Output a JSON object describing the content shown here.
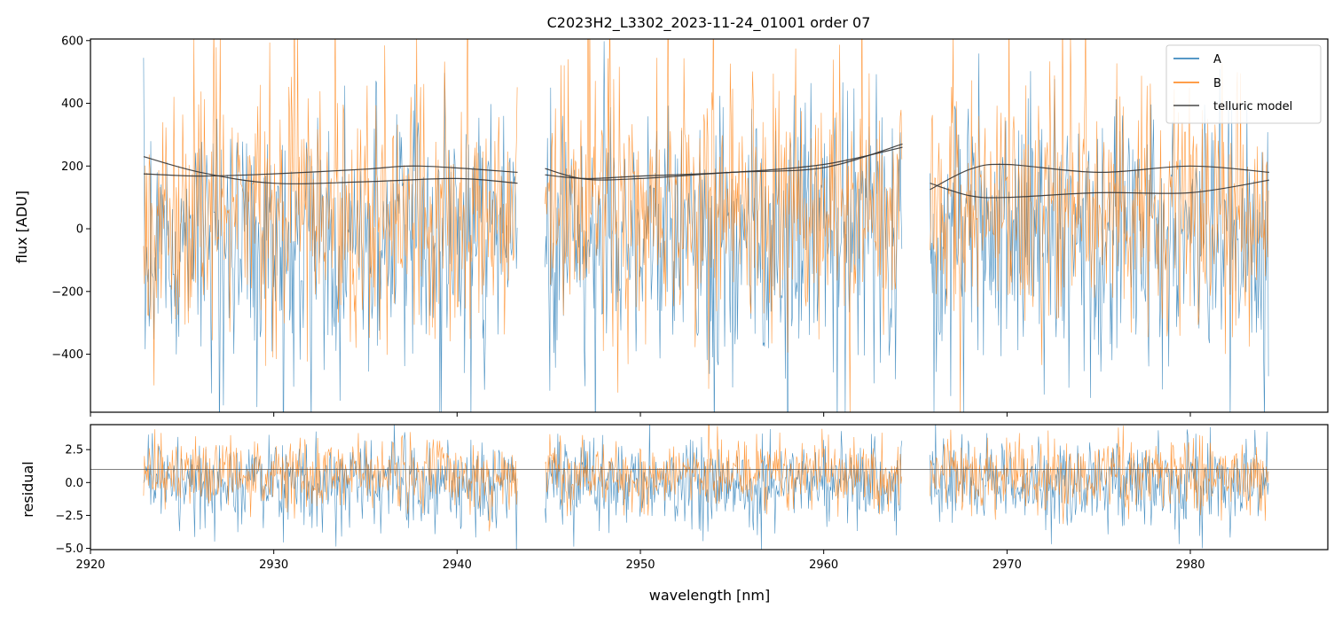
{
  "chart_data": [
    {
      "type": "line",
      "title": "C2023H2_L3302_2023-11-24_01001  order 07",
      "xlabel": "",
      "ylabel": "flux [ADU]",
      "xlim": [
        2920.0,
        2987.5
      ],
      "ylim": [
        -585,
        605
      ],
      "yticks": [
        -400,
        -200,
        0,
        200,
        400,
        600
      ],
      "ytick_labels": [
        "−400",
        "−200",
        "0",
        "200",
        "400",
        "600"
      ],
      "grid": false,
      "legend": {
        "placement": "top-right",
        "entries": [
          "A",
          "B",
          "telluric model"
        ]
      },
      "segments": [
        {
          "x_start": 2922.9,
          "x_end": 2943.3
        },
        {
          "x_start": 2944.8,
          "x_end": 2964.3
        },
        {
          "x_start": 2965.8,
          "x_end": 2984.3
        }
      ],
      "series": [
        {
          "name": "A",
          "color": "#1f77b4",
          "center": -10,
          "spread": 200,
          "low_tail": 280,
          "alpha": 0.8
        },
        {
          "name": "B",
          "color": "#ff7f0e",
          "center": 40,
          "spread": 190,
          "high_tail": 300,
          "alpha": 0.8
        },
        {
          "name": "telluric model",
          "color": "#333333",
          "curves": [
            {
              "x": [
                2922.9,
                2926,
                2930,
                2935,
                2940,
                2943.3
              ],
              "y": [
                230,
                180,
                145,
                150,
                160,
                145
              ]
            },
            {
              "x": [
                2922.9,
                2926,
                2930,
                2935,
                2938,
                2943.3
              ],
              "y": [
                175,
                168,
                175,
                190,
                200,
                180
              ]
            },
            {
              "x": [
                2944.8,
                2947,
                2950,
                2955,
                2960,
                2964.3
              ],
              "y": [
                192,
                158,
                160,
                180,
                195,
                270
              ]
            },
            {
              "x": [
                2944.8,
                2947,
                2950,
                2955,
                2960,
                2964.3
              ],
              "y": [
                172,
                160,
                168,
                180,
                205,
                260
              ]
            },
            {
              "x": [
                2965.8,
                2968,
                2970,
                2975,
                2980,
                2984.3
              ],
              "y": [
                125,
                190,
                205,
                180,
                200,
                180
              ]
            },
            {
              "x": [
                2965.8,
                2968,
                2970,
                2975,
                2980,
                2984.3
              ],
              "y": [
                145,
                105,
                100,
                115,
                115,
                155
              ]
            }
          ]
        }
      ]
    },
    {
      "type": "line",
      "title": "",
      "xlabel": "wavelength [nm]",
      "ylabel": "residual",
      "xlim": [
        2920.0,
        2987.5
      ],
      "ylim": [
        -5.1,
        4.4
      ],
      "xticks": [
        2920,
        2930,
        2940,
        2950,
        2960,
        2970,
        2980
      ],
      "xtick_labels": [
        "2920",
        "2930",
        "2940",
        "2950",
        "2960",
        "2970",
        "2980"
      ],
      "yticks": [
        -5.0,
        -2.5,
        0.0,
        2.5
      ],
      "ytick_labels": [
        "−5.0",
        "−2.5",
        "0.0",
        "2.5"
      ],
      "reference_line": 1.0,
      "grid": false,
      "segments": [
        {
          "x_start": 2922.9,
          "x_end": 2943.3
        },
        {
          "x_start": 2944.8,
          "x_end": 2964.3
        },
        {
          "x_start": 2965.8,
          "x_end": 2984.3
        }
      ],
      "series": [
        {
          "name": "A",
          "color": "#1f77b4",
          "center": 0.0,
          "spread": 1.6,
          "alpha": 0.8
        },
        {
          "name": "B",
          "color": "#ff7f0e",
          "center": 0.6,
          "spread": 1.4,
          "alpha": 0.8
        }
      ]
    }
  ]
}
